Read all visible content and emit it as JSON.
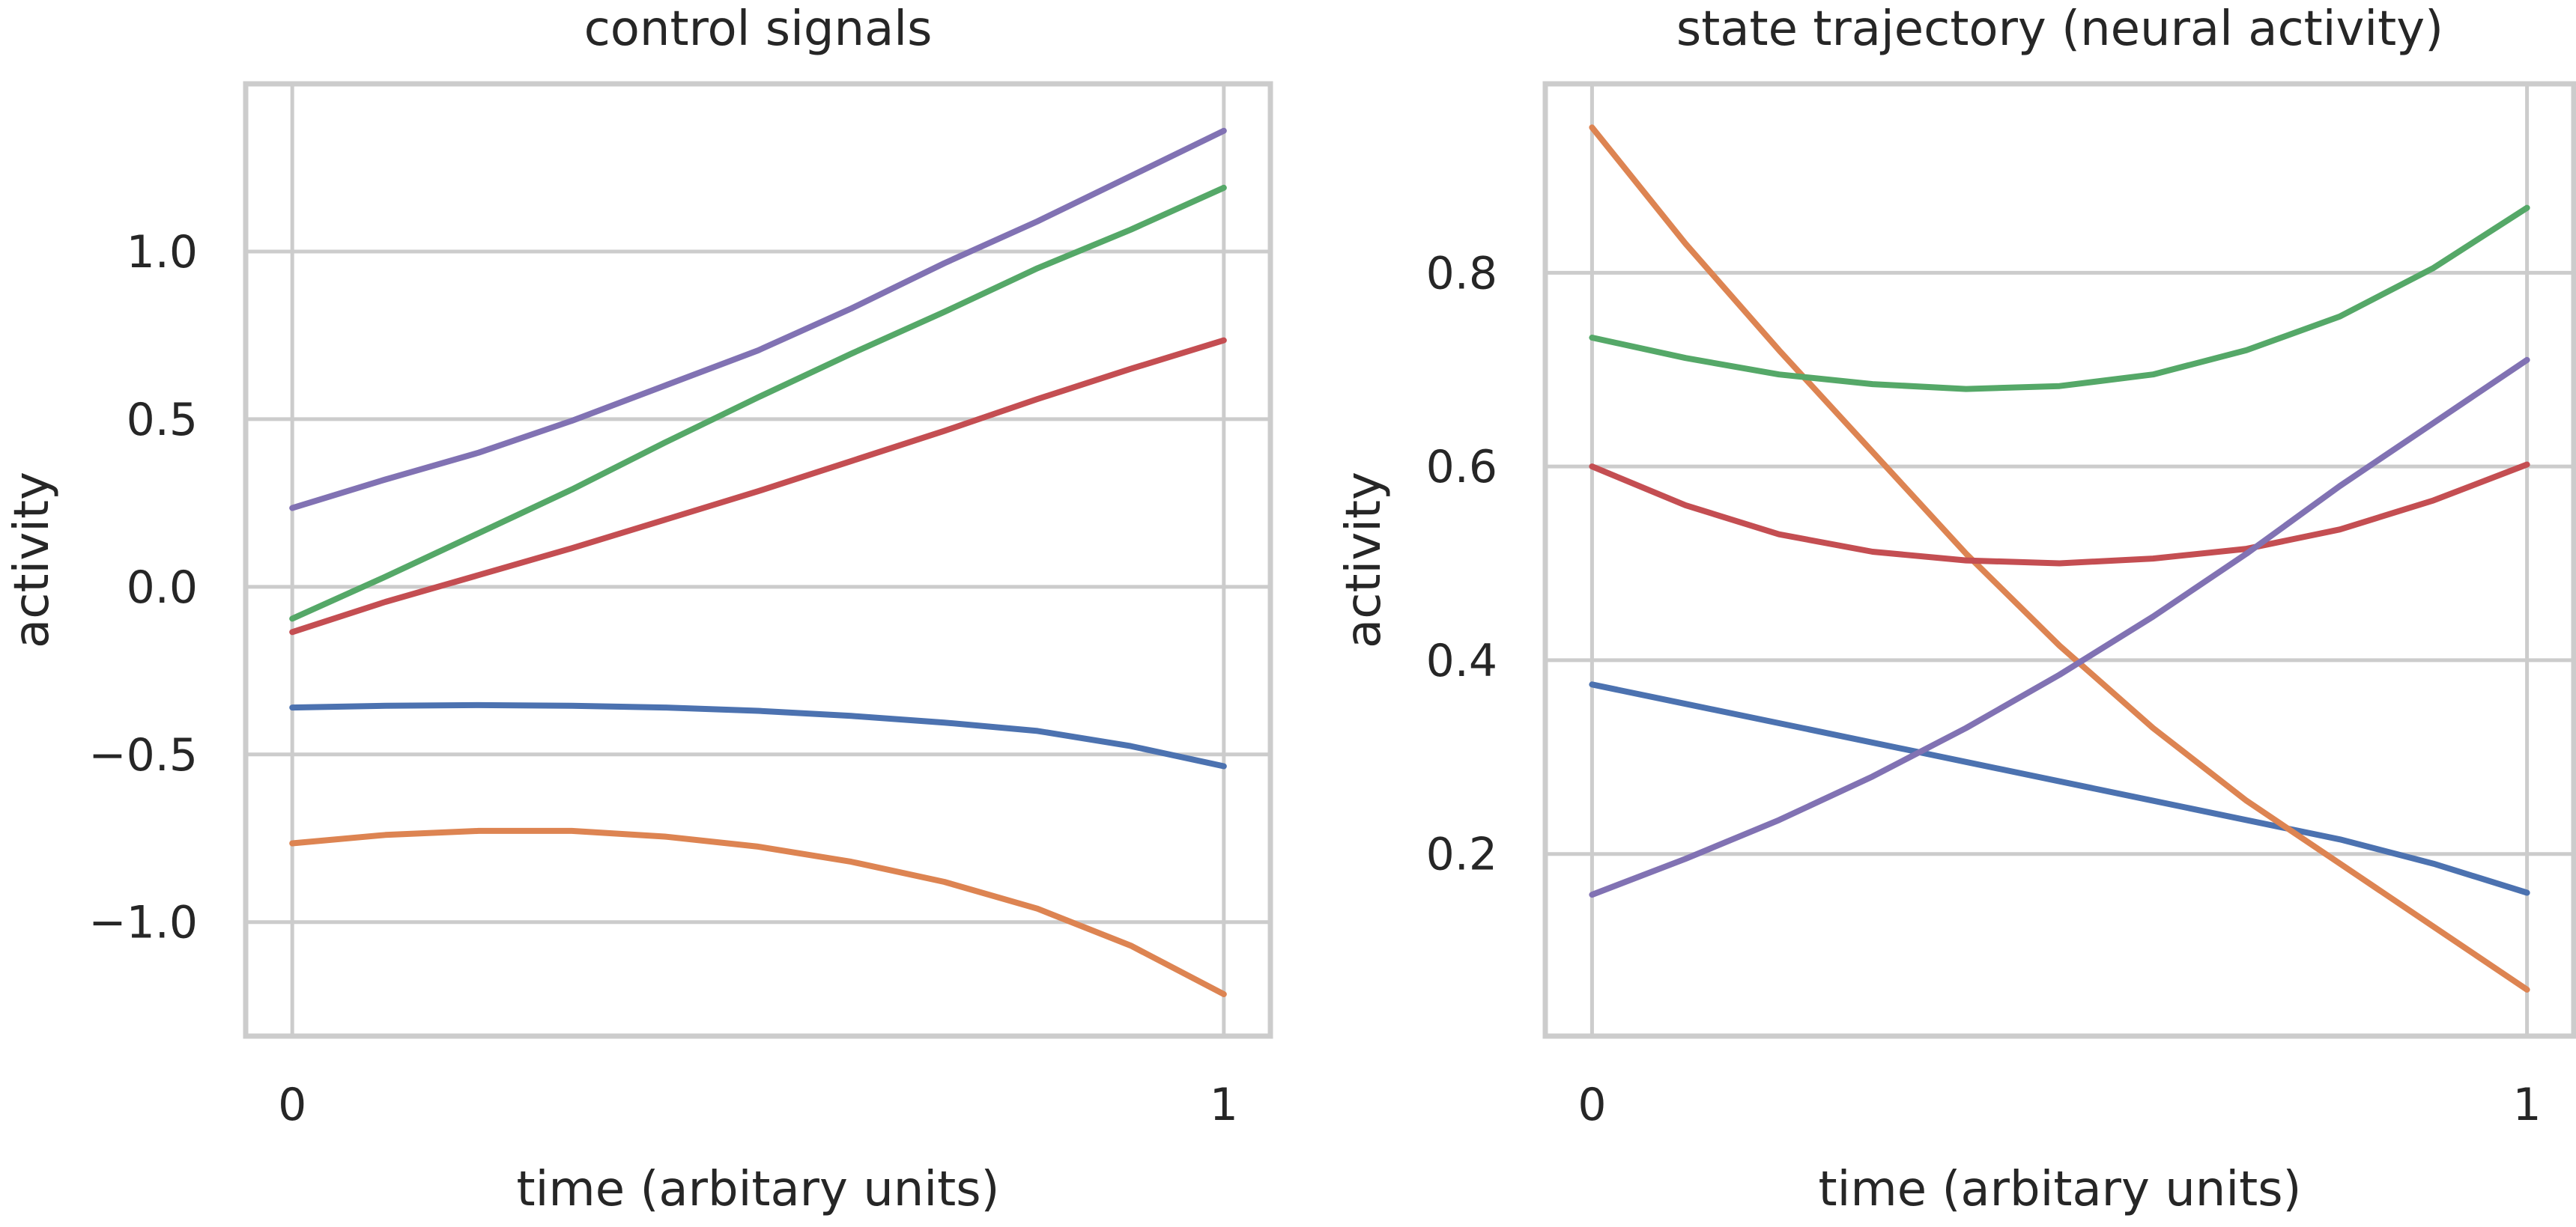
{
  "chart_data": [
    {
      "type": "line",
      "title": "control signals",
      "xlabel": "time (arbitary units)",
      "ylabel": "activity",
      "xlim": [
        -0.05,
        1.05
      ],
      "ylim": [
        -1.34,
        1.5
      ],
      "xticks": [
        0,
        1
      ],
      "xtick_labels": [
        "0",
        "1"
      ],
      "yticks": [
        -1.0,
        -0.5,
        0.0,
        0.5,
        1.0
      ],
      "ytick_labels": [
        "−1.0",
        "−0.5",
        "0.0",
        "0.5",
        "1.0"
      ],
      "grid": true,
      "x": [
        0,
        0.1,
        0.2,
        0.3,
        0.4,
        0.5,
        0.6,
        0.7,
        0.8,
        0.9,
        1.0
      ],
      "series": [
        {
          "color": "#4c72b0",
          "values": [
            -0.36,
            -0.355,
            -0.353,
            -0.355,
            -0.36,
            -0.37,
            -0.385,
            -0.405,
            -0.43,
            -0.475,
            -0.535
          ]
        },
        {
          "color": "#dd8452",
          "values": [
            -0.765,
            -0.74,
            -0.728,
            -0.728,
            -0.745,
            -0.775,
            -0.82,
            -0.88,
            -0.96,
            -1.07,
            -1.215
          ]
        },
        {
          "color": "#55a868",
          "values": [
            -0.095,
            0.03,
            0.16,
            0.29,
            0.43,
            0.565,
            0.695,
            0.82,
            0.95,
            1.065,
            1.19
          ]
        },
        {
          "color": "#c44e52",
          "values": [
            -0.135,
            -0.045,
            0.035,
            0.115,
            0.2,
            0.285,
            0.375,
            0.465,
            0.56,
            0.65,
            0.735
          ]
        },
        {
          "color": "#8172b3",
          "values": [
            0.235,
            0.32,
            0.4,
            0.495,
            0.6,
            0.705,
            0.83,
            0.965,
            1.09,
            1.225,
            1.36
          ]
        }
      ]
    },
    {
      "type": "line",
      "title": "state trajectory (neural activity)",
      "xlabel": "time (arbitary units)",
      "ylabel": "activity",
      "xlim": [
        -0.05,
        1.05
      ],
      "ylim": [
        0.012,
        0.995
      ],
      "xticks": [
        0,
        1
      ],
      "xtick_labels": [
        "0",
        "1"
      ],
      "yticks": [
        0.2,
        0.4,
        0.6,
        0.8
      ],
      "ytick_labels": [
        "0.2",
        "0.4",
        "0.6",
        "0.8"
      ],
      "grid": true,
      "x": [
        0,
        0.1,
        0.2,
        0.3,
        0.4,
        0.5,
        0.6,
        0.7,
        0.8,
        0.9,
        1.0
      ],
      "series": [
        {
          "color": "#4c72b0",
          "values": [
            0.375,
            0.355,
            0.335,
            0.315,
            0.295,
            0.275,
            0.255,
            0.235,
            0.215,
            0.19,
            0.16
          ]
        },
        {
          "color": "#dd8452",
          "values": [
            0.95,
            0.83,
            0.72,
            0.615,
            0.51,
            0.415,
            0.33,
            0.255,
            0.19,
            0.125,
            0.06
          ]
        },
        {
          "color": "#55a868",
          "values": [
            0.733,
            0.712,
            0.695,
            0.685,
            0.68,
            0.683,
            0.695,
            0.72,
            0.755,
            0.805,
            0.867
          ]
        },
        {
          "color": "#c44e52",
          "values": [
            0.6,
            0.56,
            0.53,
            0.512,
            0.503,
            0.5,
            0.505,
            0.515,
            0.535,
            0.565,
            0.602
          ]
        },
        {
          "color": "#8172b3",
          "values": [
            0.158,
            0.195,
            0.235,
            0.28,
            0.33,
            0.385,
            0.445,
            0.51,
            0.58,
            0.645,
            0.71
          ]
        }
      ]
    }
  ]
}
